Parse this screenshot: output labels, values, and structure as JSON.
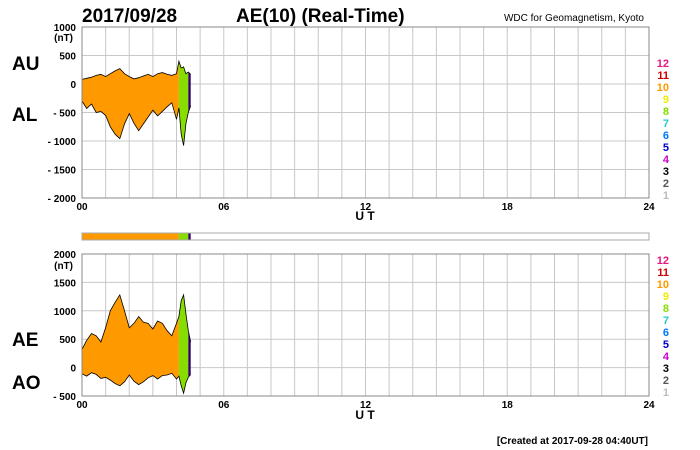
{
  "title": {
    "date": "2017/09/28",
    "index": "AE(10) (Real-Time)",
    "source": "WDC for Geomagnetism, Kyoto"
  },
  "created": "[Created at 2017-09-28 04:40UT]",
  "legend": {
    "entries": [
      "12",
      "11",
      "10",
      "9",
      "8",
      "7",
      "6",
      "5",
      "4",
      "3",
      "2",
      "1"
    ],
    "colors": [
      "#e8177d",
      "#cc0000",
      "#ff9900",
      "#eeee00",
      "#88dd00",
      "#22cccc",
      "#0077ff",
      "#0000cc",
      "#cc00cc",
      "#000000",
      "#555555",
      "#bbbbbb"
    ]
  },
  "chart_data": [
    {
      "type": "area",
      "unit": "(nT)",
      "upper_label": "AU",
      "lower_label": "AL",
      "xlabel": "U T",
      "xlim": [
        0,
        24
      ],
      "ylim": [
        -2000,
        1000
      ],
      "xticks": [
        "00",
        "06",
        "12",
        "18",
        "24"
      ],
      "yticks": [
        "1000",
        "500",
        "0",
        "- 500",
        "- 1000",
        "- 1500",
        "- 2000"
      ],
      "grid": true,
      "x_hours": [
        0,
        0.2,
        0.4,
        0.6,
        0.8,
        1.0,
        1.2,
        1.4,
        1.6,
        1.8,
        2.0,
        2.2,
        2.4,
        2.6,
        2.8,
        3.0,
        3.2,
        3.4,
        3.6,
        3.8,
        4.0,
        4.1,
        4.2,
        4.3,
        4.4,
        4.5,
        4.6
      ],
      "series": [
        {
          "name": "AU",
          "values": [
            80,
            100,
            120,
            150,
            170,
            130,
            180,
            230,
            270,
            180,
            130,
            90,
            110,
            140,
            170,
            130,
            180,
            200,
            170,
            150,
            180,
            400,
            280,
            300,
            180,
            210,
            170
          ]
        },
        {
          "name": "AL",
          "values": [
            -300,
            -430,
            -350,
            -500,
            -480,
            -550,
            -750,
            -880,
            -960,
            -700,
            -520,
            -690,
            -820,
            -700,
            -580,
            -460,
            -560,
            -480,
            -400,
            -330,
            -620,
            -420,
            -880,
            -1080,
            -700,
            -500,
            -380
          ]
        }
      ],
      "bands": [
        {
          "from": 0,
          "to": 4.1,
          "color": "#ff9900"
        },
        {
          "from": 4.1,
          "to": 4.5,
          "color": "#88dd00"
        },
        {
          "from": 4.5,
          "to": 4.6,
          "color": "#330066"
        }
      ]
    },
    {
      "type": "area",
      "unit": "(nT)",
      "upper_label": "AE",
      "lower_label": "AO",
      "xlabel": "U T",
      "xlim": [
        0,
        24
      ],
      "ylim": [
        -500,
        2000
      ],
      "xticks": [
        "00",
        "06",
        "12",
        "18",
        "24"
      ],
      "yticks": [
        "2000",
        "1500",
        "1000",
        "500",
        "0",
        "- 500"
      ],
      "grid": true,
      "x_hours": [
        0,
        0.2,
        0.4,
        0.6,
        0.8,
        1.0,
        1.2,
        1.4,
        1.6,
        1.8,
        2.0,
        2.2,
        2.4,
        2.6,
        2.8,
        3.0,
        3.2,
        3.4,
        3.6,
        3.8,
        4.0,
        4.1,
        4.2,
        4.3,
        4.4,
        4.5,
        4.6
      ],
      "series": [
        {
          "name": "AE",
          "values": [
            320,
            480,
            600,
            560,
            450,
            700,
            1000,
            1150,
            1280,
            1000,
            700,
            780,
            900,
            800,
            780,
            680,
            820,
            780,
            650,
            560,
            780,
            900,
            1180,
            1280,
            950,
            650,
            450
          ]
        },
        {
          "name": "AO",
          "values": [
            -110,
            -150,
            -90,
            -120,
            -190,
            -170,
            -220,
            -280,
            -320,
            -250,
            -130,
            -240,
            -300,
            -250,
            -180,
            -140,
            -200,
            -140,
            -130,
            -100,
            -200,
            -150,
            -320,
            -450,
            -270,
            -170,
            -120
          ]
        }
      ],
      "bands": [
        {
          "from": 0,
          "to": 4.1,
          "color": "#ff9900"
        },
        {
          "from": 4.1,
          "to": 4.5,
          "color": "#88dd00"
        },
        {
          "from": 4.5,
          "to": 4.6,
          "color": "#330066"
        }
      ]
    }
  ],
  "coverage_bar": {
    "xlim": [
      0,
      24
    ],
    "bands": [
      {
        "from": 0,
        "to": 4.1,
        "color": "#ff9900"
      },
      {
        "from": 4.1,
        "to": 4.5,
        "color": "#88dd00"
      },
      {
        "from": 4.5,
        "to": 4.6,
        "color": "#330066"
      }
    ]
  }
}
